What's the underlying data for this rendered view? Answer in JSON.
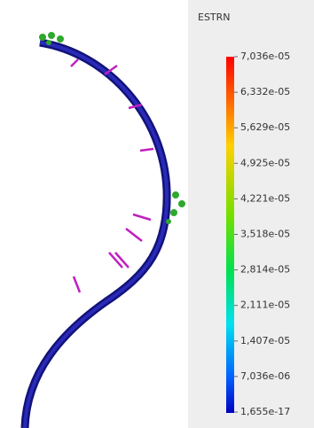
{
  "legend": {
    "title": "ESTRN",
    "labels": [
      "7,036e-05",
      "6,332e-05",
      "5,629e-05",
      "4,925e-05",
      "4,221e-05",
      "3,518e-05",
      "2,814e-05",
      "2,111e-05",
      "1,407e-05",
      "7,036e-06",
      "1,655e-17"
    ]
  }
}
